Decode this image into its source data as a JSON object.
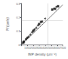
{
  "chart_data": {
    "type": "scatter",
    "xlabel": "IMP density (μm⁻²)",
    "ylabel": "Pf (cm/s)",
    "xlim": [
      0,
      7000
    ],
    "ylim": [
      0,
      0.3
    ],
    "xticks": [
      {
        "value": 0,
        "label": ""
      },
      1000,
      2000,
      3000,
      4000,
      5000,
      6000,
      7000
    ],
    "yticks": [
      0,
      0.1,
      0.2,
      0.3
    ],
    "grid": false,
    "color": "black",
    "points": [
      {
        "x": 300,
        "y": 0.015,
        "marker": "square"
      },
      {
        "x": 450,
        "y": 0.022,
        "marker": "square"
      },
      {
        "x": 800,
        "y": 0.04,
        "marker": "circle"
      },
      {
        "x": 1000,
        "y": 0.05,
        "marker": "circle"
      },
      {
        "x": 1200,
        "y": 0.06,
        "marker": "triangle"
      },
      {
        "x": 1500,
        "y": 0.075,
        "marker": "triangle"
      },
      {
        "x": 1800,
        "y": 0.09,
        "marker": "diamond"
      },
      {
        "x": 2000,
        "y": 0.1,
        "marker": "square"
      },
      {
        "x": 2200,
        "y": 0.11,
        "marker": "circle"
      },
      {
        "x": 2500,
        "y": 0.125,
        "marker": "triangle"
      },
      {
        "x": 2800,
        "y": 0.14,
        "marker": "diamond"
      },
      {
        "x": 3000,
        "y": 0.15,
        "marker": "square"
      },
      {
        "x": 3300,
        "y": 0.165,
        "marker": "circle"
      },
      {
        "x": 3500,
        "y": 0.17,
        "marker": "triangle"
      },
      {
        "x": 4000,
        "y": 0.19,
        "marker": "diamond"
      },
      {
        "x": 5200,
        "y": 0.255,
        "marker": "square"
      },
      {
        "x": 5500,
        "y": 0.265,
        "marker": "triangle"
      },
      {
        "x": 5700,
        "y": 0.26,
        "marker": "circle"
      },
      {
        "x": 5900,
        "y": 0.275,
        "marker": "diamond"
      },
      {
        "x": 6200,
        "y": 0.28,
        "marker": "square"
      }
    ],
    "trendline": {
      "x": [
        0,
        7000
      ],
      "y": [
        0,
        0.2905
      ],
      "color": "black"
    },
    "reference_lines": {
      "x": 4500,
      "y": 0.18,
      "color": "#aaaaaa"
    }
  }
}
